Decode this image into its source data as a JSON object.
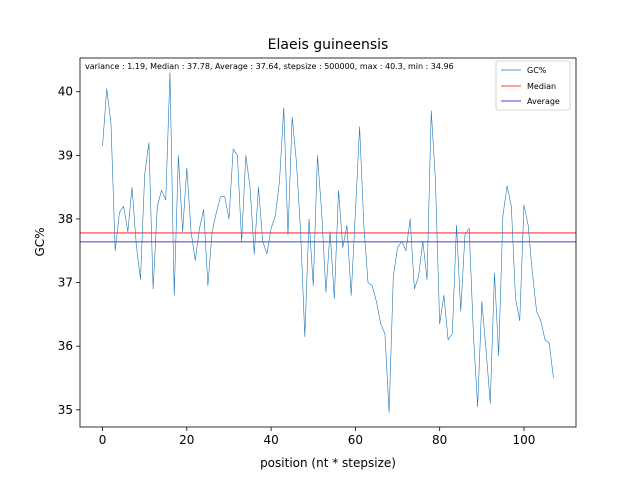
{
  "chart_data": {
    "type": "line",
    "title": "Elaeis guineensis",
    "xlabel": "position (nt * stepsize)",
    "ylabel": "GC%",
    "annotation": "variance : 1.19, Median : 37.78, Average : 37.64, stepsize : 500000, max : 40.3, min : 34.96",
    "xlim": [
      -5.35,
      112.35
    ],
    "ylim": [
      34.73,
      40.53
    ],
    "xticks": [
      0,
      20,
      40,
      60,
      80,
      100
    ],
    "yticks": [
      35,
      36,
      37,
      38,
      39,
      40
    ],
    "grid": false,
    "legend_position": "top-right",
    "series": [
      {
        "name": "GC%",
        "color": "#1f77b4",
        "x": [
          0,
          1,
          2,
          3,
          4,
          5,
          6,
          7,
          8,
          9,
          10,
          11,
          12,
          13,
          14,
          15,
          16,
          17,
          18,
          19,
          20,
          21,
          22,
          23,
          24,
          25,
          26,
          27,
          28,
          29,
          30,
          31,
          32,
          33,
          34,
          35,
          36,
          37,
          38,
          39,
          40,
          41,
          42,
          43,
          44,
          45,
          46,
          47,
          48,
          49,
          50,
          51,
          52,
          53,
          54,
          55,
          56,
          57,
          58,
          59,
          60,
          61,
          62,
          63,
          64,
          65,
          66,
          67,
          68,
          69,
          70,
          71,
          72,
          73,
          74,
          75,
          76,
          77,
          78,
          79,
          80,
          81,
          82,
          83,
          84,
          85,
          86,
          87,
          88,
          89,
          90,
          91,
          92,
          93,
          94,
          95,
          96,
          97,
          98,
          99,
          100,
          101,
          102,
          103,
          104,
          105,
          106,
          107
        ],
        "values": [
          39.15,
          40.05,
          39.5,
          37.5,
          38.1,
          38.2,
          37.8,
          38.5,
          37.6,
          37.05,
          38.7,
          39.2,
          36.9,
          38.2,
          38.45,
          38.3,
          40.3,
          36.8,
          39.0,
          37.8,
          38.8,
          37.8,
          37.35,
          37.85,
          38.15,
          36.95,
          37.8,
          38.1,
          38.35,
          38.35,
          38.0,
          39.1,
          39.0,
          37.65,
          39.0,
          38.5,
          37.45,
          38.5,
          37.65,
          37.45,
          37.85,
          38.05,
          38.6,
          39.75,
          37.75,
          39.6,
          38.9,
          37.8,
          36.15,
          38.0,
          36.95,
          39.0,
          38.1,
          36.85,
          37.8,
          36.75,
          38.45,
          37.55,
          37.9,
          36.8,
          38.1,
          39.45,
          37.9,
          37.0,
          36.95,
          36.7,
          36.35,
          36.2,
          34.96,
          37.1,
          37.55,
          37.65,
          37.5,
          38.0,
          36.9,
          37.1,
          37.65,
          37.05,
          39.7,
          38.6,
          36.35,
          36.8,
          36.1,
          36.2,
          37.9,
          36.55,
          37.75,
          37.85,
          36.2,
          35.05,
          36.7,
          35.95,
          35.1,
          37.15,
          35.85,
          38.05,
          38.52,
          38.2,
          36.75,
          36.4,
          38.22,
          37.9,
          37.15,
          36.55,
          36.4,
          36.1,
          36.05,
          35.5
        ]
      },
      {
        "name": "Median",
        "color": "#ff0000",
        "value": 37.78
      },
      {
        "name": "Average",
        "color": "#0000cc",
        "value": 37.64
      }
    ]
  }
}
